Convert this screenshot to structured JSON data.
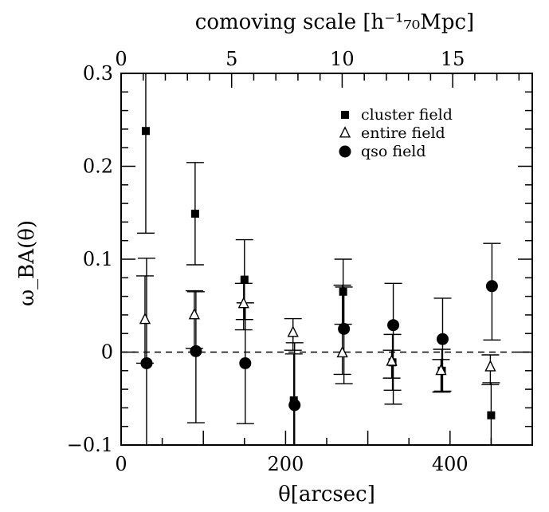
{
  "chart_data": {
    "type": "scatter",
    "xlabel": "θ[arcsec]",
    "x2label": "comoving scale [h⁻¹₇₀Mpc]",
    "ylabel": "ω_BA(θ)",
    "xlim": [
      0,
      500
    ],
    "x2lim": [
      0,
      18.6
    ],
    "ylim": [
      -0.1,
      0.3
    ],
    "x_ticks": [
      0,
      200,
      400
    ],
    "x_ticks_labels": [
      "0",
      "200",
      "400"
    ],
    "x2_ticks": [
      0,
      5,
      10,
      15
    ],
    "x2_ticks_labels": [
      "0",
      "5",
      "10",
      "15"
    ],
    "y_ticks": [
      -0.1,
      0,
      0.1,
      0.2,
      0.3
    ],
    "y_ticks_labels": [
      "−0.1",
      "0",
      "0.1",
      "0.2",
      "0.3"
    ],
    "reference_line": {
      "y": 0,
      "style": "dashed"
    },
    "grid": false,
    "legend_position": "top-right",
    "series": [
      {
        "name": "cluster field",
        "marker": "filled-square",
        "points": [
          {
            "x": 30,
            "y": 0.238,
            "lo": 0.128,
            "hi": 0.348
          },
          {
            "x": 90,
            "y": 0.149,
            "lo": 0.094,
            "hi": 0.204
          },
          {
            "x": 150,
            "y": 0.078,
            "lo": 0.035,
            "hi": 0.121
          },
          {
            "x": 210,
            "y": -0.052,
            "lo": -0.102,
            "hi": -0.002
          },
          {
            "x": 270,
            "y": 0.065,
            "lo": 0.03,
            "hi": 0.1
          },
          {
            "x": 330,
            "y": -0.011,
            "lo": -0.041,
            "hi": 0.019
          },
          {
            "x": 390,
            "y": -0.02,
            "lo": -0.043,
            "hi": 0.003
          },
          {
            "x": 450,
            "y": -0.068,
            "lo": -0.103,
            "hi": -0.033
          }
        ]
      },
      {
        "name": "entire field",
        "marker": "open-triangle",
        "points": [
          {
            "x": 30,
            "y": 0.035,
            "lo": -0.012,
            "hi": 0.082
          },
          {
            "x": 90,
            "y": 0.04,
            "lo": 0.004,
            "hi": 0.066
          },
          {
            "x": 150,
            "y": 0.052,
            "lo": 0.024,
            "hi": 0.074
          },
          {
            "x": 210,
            "y": 0.021,
            "lo": 0.002,
            "hi": 0.036
          },
          {
            "x": 270,
            "y": -0.001,
            "lo": -0.024,
            "hi": 0.072
          },
          {
            "x": 330,
            "y": -0.01,
            "lo": -0.028,
            "hi": 0.002
          },
          {
            "x": 390,
            "y": -0.02,
            "lo": -0.043,
            "hi": -0.008
          },
          {
            "x": 450,
            "y": -0.016,
            "lo": -0.035,
            "hi": -0.003
          }
        ]
      },
      {
        "name": "qso field",
        "marker": "filled-circle",
        "points": [
          {
            "x": 30,
            "y": -0.012,
            "lo": -0.102,
            "hi": 0.101
          },
          {
            "x": 90,
            "y": 0.001,
            "lo": -0.076,
            "hi": 0.065
          },
          {
            "x": 150,
            "y": -0.012,
            "lo": -0.077,
            "hi": 0.053
          },
          {
            "x": 210,
            "y": -0.057,
            "lo": -0.102,
            "hi": 0.01
          },
          {
            "x": 270,
            "y": 0.025,
            "lo": -0.034,
            "hi": 0.07
          },
          {
            "x": 330,
            "y": 0.029,
            "lo": -0.056,
            "hi": 0.074
          },
          {
            "x": 390,
            "y": 0.014,
            "lo": -0.042,
            "hi": 0.058
          },
          {
            "x": 450,
            "y": 0.071,
            "lo": 0.013,
            "hi": 0.117
          }
        ]
      }
    ]
  }
}
